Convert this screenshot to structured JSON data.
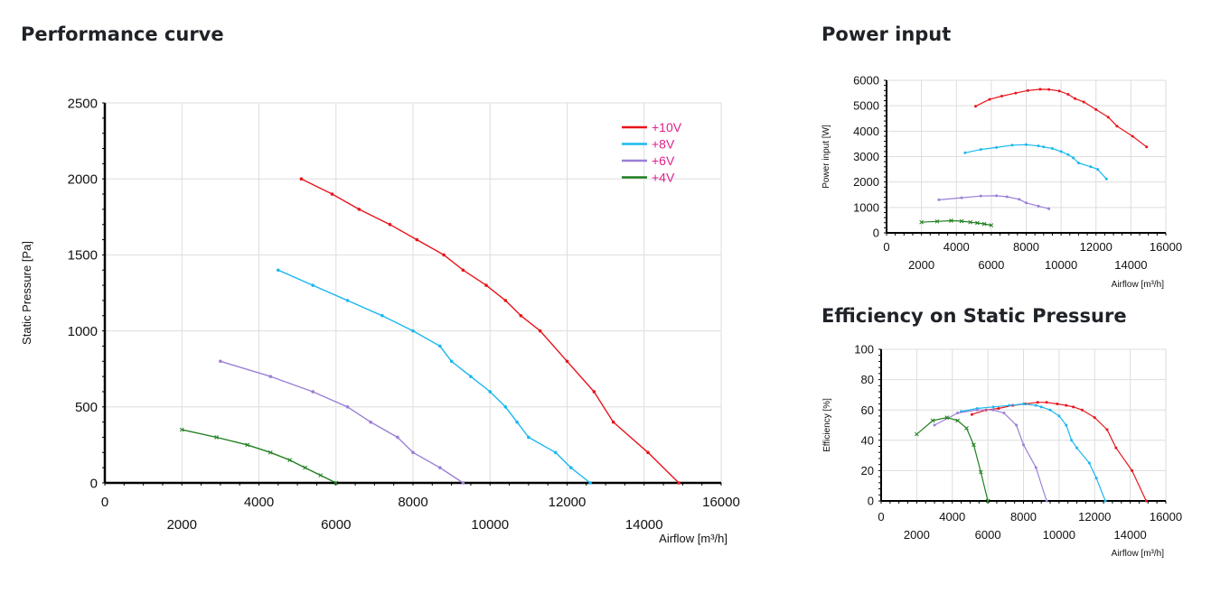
{
  "titles": {
    "performance": "Performance curve",
    "power": "Power input",
    "efficiency": "Efficiency on Static Pressure"
  },
  "colors": {
    "+10V": "#e8141b",
    "+8V": "#1ab8ef",
    "+6V": "#9b7fd6",
    "+4V": "#1e7f1e",
    "legend_text": "#e0208a",
    "grid": "#dddddd",
    "axis": "#000000"
  },
  "chart_data": [
    {
      "id": "performance",
      "type": "line",
      "title": "",
      "xlabel": "Airflow [m³/h]",
      "ylabel": "Static Pressure [Pa]",
      "xlim": [
        0,
        16000
      ],
      "ylim": [
        0,
        2500
      ],
      "x_ticks_upper": [
        "0",
        "4000",
        "8000",
        "12000",
        "16000"
      ],
      "x_ticks_lower": [
        "2000",
        "6000",
        "10000",
        "14000"
      ],
      "y_ticks": [
        "0",
        "500",
        "1000",
        "1500",
        "2000",
        "2500"
      ],
      "grid": true,
      "legend": "top-right",
      "series": [
        {
          "name": "+10V",
          "points": [
            [
              5100,
              2000
            ],
            [
              5900,
              1900
            ],
            [
              6600,
              1800
            ],
            [
              7400,
              1700
            ],
            [
              8100,
              1600
            ],
            [
              8800,
              1500
            ],
            [
              9300,
              1400
            ],
            [
              9900,
              1300
            ],
            [
              10400,
              1200
            ],
            [
              10800,
              1100
            ],
            [
              11300,
              1000
            ],
            [
              12000,
              800
            ],
            [
              12700,
              600
            ],
            [
              13200,
              400
            ],
            [
              14100,
              200
            ],
            [
              14900,
              0
            ]
          ]
        },
        {
          "name": "+8V",
          "points": [
            [
              4500,
              1400
            ],
            [
              5400,
              1300
            ],
            [
              6300,
              1200
            ],
            [
              7200,
              1100
            ],
            [
              8000,
              1000
            ],
            [
              8700,
              900
            ],
            [
              9000,
              800
            ],
            [
              9500,
              700
            ],
            [
              10000,
              600
            ],
            [
              10400,
              500
            ],
            [
              10700,
              400
            ],
            [
              11000,
              300
            ],
            [
              11700,
              200
            ],
            [
              12100,
              100
            ],
            [
              12600,
              0
            ]
          ]
        },
        {
          "name": "+6V",
          "points": [
            [
              3000,
              800
            ],
            [
              4300,
              700
            ],
            [
              5400,
              600
            ],
            [
              6300,
              500
            ],
            [
              6900,
              400
            ],
            [
              7600,
              300
            ],
            [
              8000,
              200
            ],
            [
              8700,
              100
            ],
            [
              9300,
              0
            ]
          ]
        },
        {
          "name": "+4V",
          "points": [
            [
              2000,
              350
            ],
            [
              2900,
              300
            ],
            [
              3700,
              250
            ],
            [
              4300,
              200
            ],
            [
              4800,
              150
            ],
            [
              5200,
              100
            ],
            [
              5600,
              50
            ],
            [
              6000,
              0
            ]
          ]
        }
      ]
    },
    {
      "id": "power",
      "type": "line",
      "title": "",
      "xlabel": "Airflow [m³/h]",
      "ylabel": "Power input [W]",
      "xlim": [
        0,
        16000
      ],
      "ylim": [
        0,
        6000
      ],
      "x_ticks_upper": [
        "0",
        "4000",
        "8000",
        "12000",
        "16000"
      ],
      "x_ticks_lower": [
        "2000",
        "6000",
        "10000",
        "14000"
      ],
      "y_ticks": [
        "0",
        "1000",
        "2000",
        "3000",
        "4000",
        "5000",
        "6000"
      ],
      "grid": true,
      "series": [
        {
          "name": "+10V",
          "points": [
            [
              5100,
              4980
            ],
            [
              5900,
              5250
            ],
            [
              6600,
              5380
            ],
            [
              7400,
              5500
            ],
            [
              8100,
              5600
            ],
            [
              8800,
              5650
            ],
            [
              9300,
              5640
            ],
            [
              9900,
              5580
            ],
            [
              10400,
              5450
            ],
            [
              10800,
              5280
            ],
            [
              11300,
              5150
            ],
            [
              12000,
              4850
            ],
            [
              12700,
              4550
            ],
            [
              13200,
              4200
            ],
            [
              14100,
              3800
            ],
            [
              14900,
              3380
            ]
          ]
        },
        {
          "name": "+8V",
          "points": [
            [
              4500,
              3150
            ],
            [
              5400,
              3280
            ],
            [
              6300,
              3360
            ],
            [
              7200,
              3450
            ],
            [
              8000,
              3470
            ],
            [
              8700,
              3420
            ],
            [
              9000,
              3380
            ],
            [
              9500,
              3320
            ],
            [
              10000,
              3200
            ],
            [
              10400,
              3080
            ],
            [
              10700,
              2950
            ],
            [
              11000,
              2750
            ],
            [
              11700,
              2600
            ],
            [
              12100,
              2500
            ],
            [
              12600,
              2120
            ]
          ]
        },
        {
          "name": "+6V",
          "points": [
            [
              3000,
              1300
            ],
            [
              4300,
              1380
            ],
            [
              5400,
              1450
            ],
            [
              6300,
              1460
            ],
            [
              6900,
              1420
            ],
            [
              7600,
              1320
            ],
            [
              8000,
              1180
            ],
            [
              8700,
              1050
            ],
            [
              9300,
              950
            ]
          ]
        },
        {
          "name": "+4V",
          "points": [
            [
              2000,
              420
            ],
            [
              2900,
              450
            ],
            [
              3700,
              480
            ],
            [
              4300,
              460
            ],
            [
              4800,
              420
            ],
            [
              5200,
              390
            ],
            [
              5600,
              350
            ],
            [
              6000,
              300
            ]
          ]
        }
      ]
    },
    {
      "id": "efficiency",
      "type": "line",
      "title": "",
      "xlabel": "Airflow [m³/h]",
      "ylabel": "Efficiency [%]",
      "xlim": [
        0,
        16000
      ],
      "ylim": [
        0,
        100
      ],
      "x_ticks_upper": [
        "0",
        "4000",
        "8000",
        "12000",
        "16000"
      ],
      "x_ticks_lower": [
        "2000",
        "6000",
        "10000",
        "14000"
      ],
      "y_ticks": [
        "0",
        "20",
        "40",
        "60",
        "80",
        "100"
      ],
      "grid": true,
      "series": [
        {
          "name": "+10V",
          "points": [
            [
              5100,
              57
            ],
            [
              5900,
              60
            ],
            [
              6600,
              61
            ],
            [
              7400,
              63
            ],
            [
              8100,
              64
            ],
            [
              8800,
              65
            ],
            [
              9300,
              65
            ],
            [
              9900,
              64
            ],
            [
              10400,
              63
            ],
            [
              10800,
              62
            ],
            [
              11300,
              60
            ],
            [
              12000,
              55
            ],
            [
              12700,
              47
            ],
            [
              13200,
              35
            ],
            [
              14100,
              20
            ],
            [
              14900,
              0
            ]
          ]
        },
        {
          "name": "+8V",
          "points": [
            [
              4500,
              59
            ],
            [
              5400,
              61
            ],
            [
              6300,
              62
            ],
            [
              7200,
              63
            ],
            [
              8000,
              64
            ],
            [
              8700,
              63
            ],
            [
              9000,
              62
            ],
            [
              9500,
              60
            ],
            [
              10000,
              56
            ],
            [
              10400,
              50
            ],
            [
              10700,
              40
            ],
            [
              11000,
              35
            ],
            [
              11700,
              25
            ],
            [
              12100,
              15
            ],
            [
              12600,
              0
            ]
          ]
        },
        {
          "name": "+6V",
          "points": [
            [
              3000,
              50
            ],
            [
              4300,
              58
            ],
            [
              5400,
              60
            ],
            [
              6300,
              60
            ],
            [
              6900,
              58
            ],
            [
              7600,
              50
            ],
            [
              8000,
              37
            ],
            [
              8700,
              22
            ],
            [
              9300,
              0
            ]
          ]
        },
        {
          "name": "+4V",
          "points": [
            [
              2000,
              44
            ],
            [
              2900,
              53
            ],
            [
              3700,
              55
            ],
            [
              4300,
              53
            ],
            [
              4800,
              48
            ],
            [
              5200,
              37
            ],
            [
              5600,
              19
            ],
            [
              6000,
              0
            ]
          ]
        }
      ]
    }
  ]
}
